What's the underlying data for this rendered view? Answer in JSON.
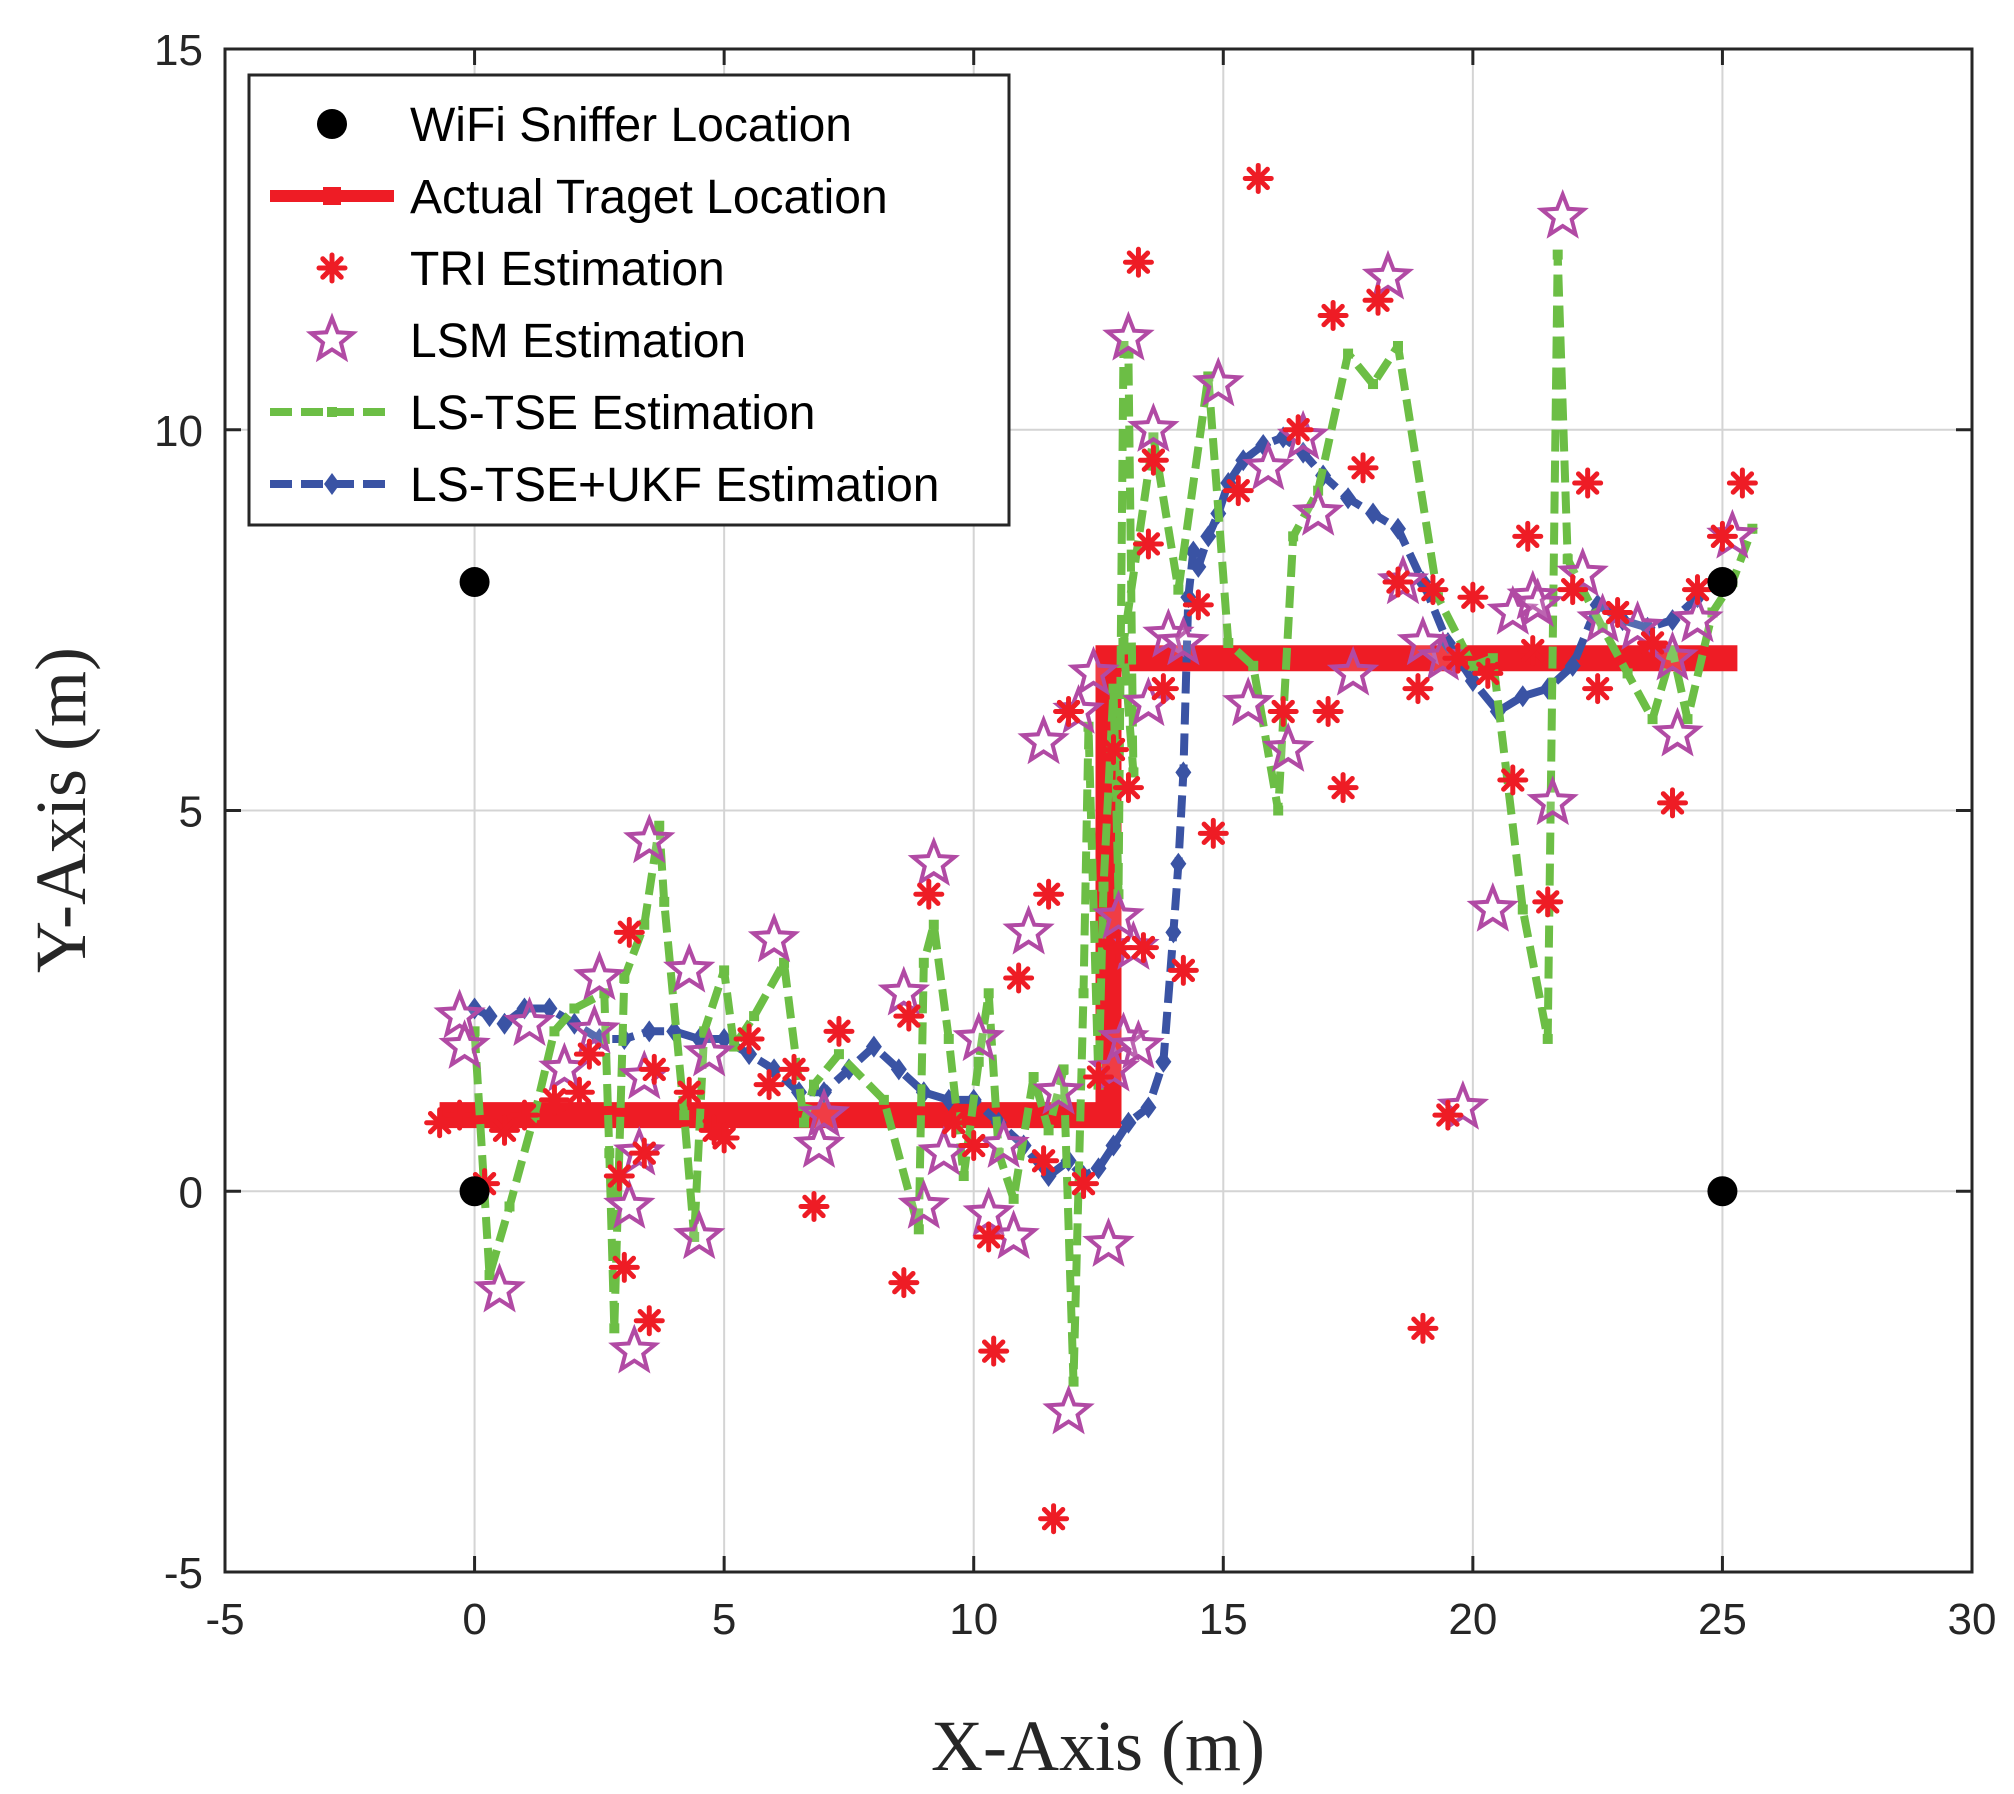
{
  "chart_data": {
    "type": "scatter",
    "title": "",
    "xlabel": "X-Axis (m)",
    "ylabel": "Y-Axis (m)",
    "xlim": [
      -5,
      30
    ],
    "ylim": [
      -5,
      15
    ],
    "xticks": [
      -5,
      0,
      5,
      10,
      15,
      20,
      25,
      30
    ],
    "yticks": [
      -5,
      0,
      5,
      10,
      15
    ],
    "xtick_labels": [
      "-5",
      "0",
      "5",
      "10",
      "15",
      "20",
      "25",
      "30"
    ],
    "ytick_labels": [
      "-5",
      "0",
      "5",
      "10",
      "15"
    ],
    "grid": true,
    "legend_position": "top-left",
    "series": [
      {
        "name": "WiFi Sniffer Location",
        "style": "marker-circle",
        "color": "#000000",
        "x": [
          0,
          0,
          25,
          25
        ],
        "y": [
          0,
          8,
          8,
          0
        ]
      },
      {
        "name": "Actual Traget Location",
        "style": "thick-line-square",
        "color": "#ee1c25",
        "x": [
          -0.7,
          12.7,
          12.7,
          25.3
        ],
        "y": [
          1,
          1,
          7,
          7
        ]
      },
      {
        "name": "TRI Estimation",
        "style": "marker-asterisk",
        "color": "#ee1c25",
        "x": [
          -0.7,
          -0.3,
          0.2,
          0.6,
          1.0,
          1.6,
          2.1,
          2.3,
          2.9,
          3.0,
          3.1,
          3.4,
          3.5,
          3.6,
          4.3,
          4.8,
          5.0,
          5.5,
          5.9,
          6.4,
          6.8,
          7.3,
          8.6,
          8.7,
          9.1,
          9.6,
          10.0,
          10.3,
          10.4,
          10.9,
          11.4,
          11.5,
          11.6,
          11.9,
          12.2,
          12.5,
          12.8,
          12.9,
          13.1,
          13.3,
          13.4,
          13.5,
          13.6,
          13.8,
          14.2,
          14.5,
          14.8,
          15.3,
          15.7,
          16.2,
          16.5,
          17.1,
          17.2,
          17.4,
          17.8,
          18.1,
          18.5,
          18.9,
          19.0,
          19.2,
          19.5,
          19.7,
          20.0,
          20.3,
          20.8,
          21.1,
          21.2,
          21.5,
          22.0,
          22.3,
          22.5,
          22.9,
          23.6,
          24.0,
          24.5,
          25.0,
          25.4
        ],
        "y": [
          0.9,
          1.0,
          0.1,
          0.8,
          1.0,
          1.2,
          1.3,
          1.8,
          0.2,
          -1.0,
          3.4,
          0.5,
          -1.7,
          1.6,
          1.3,
          0.8,
          0.7,
          2.0,
          1.4,
          1.6,
          -0.2,
          2.1,
          -1.2,
          2.3,
          3.9,
          0.9,
          0.6,
          -0.6,
          -2.1,
          2.8,
          0.4,
          3.9,
          -4.3,
          6.3,
          0.1,
          1.5,
          5.8,
          3.2,
          5.3,
          12.2,
          3.2,
          8.5,
          9.6,
          6.6,
          2.9,
          7.7,
          4.7,
          9.2,
          13.3,
          6.3,
          10.0,
          6.3,
          11.5,
          5.3,
          9.5,
          11.7,
          8.0,
          6.6,
          -1.8,
          7.9,
          1.0,
          7.0,
          7.8,
          6.8,
          5.4,
          8.6,
          7.1,
          3.8,
          7.9,
          9.3,
          6.6,
          7.6,
          7.2,
          5.1,
          7.9,
          8.6,
          9.3
        ]
      },
      {
        "name": "LSM Estimation",
        "style": "marker-star",
        "color": "#b14aa4",
        "x": [
          -0.3,
          -0.2,
          0.5,
          1.1,
          1.8,
          2.4,
          2.5,
          3.1,
          3.2,
          3.3,
          3.4,
          3.5,
          4.3,
          4.5,
          4.7,
          6.0,
          6.9,
          7.0,
          8.6,
          9.0,
          9.2,
          9.4,
          10.1,
          10.3,
          10.6,
          10.8,
          11.1,
          11.4,
          11.7,
          11.9,
          12.1,
          12.4,
          12.7,
          12.8,
          12.9,
          13.0,
          13.1,
          13.2,
          13.3,
          13.5,
          13.6,
          13.9,
          14.2,
          14.9,
          15.5,
          15.9,
          16.3,
          16.6,
          16.9,
          17.6,
          18.3,
          18.6,
          19.0,
          19.4,
          19.8,
          20.4,
          20.8,
          21.2,
          21.3,
          21.6,
          21.8,
          22.2,
          22.6,
          23.3,
          24.0,
          24.1,
          24.5,
          25.2
        ],
        "y": [
          2.3,
          1.9,
          -1.3,
          2.2,
          1.6,
          2.1,
          2.8,
          -0.2,
          -2.1,
          0.5,
          1.5,
          4.6,
          2.9,
          -0.6,
          1.8,
          3.3,
          0.6,
          1.0,
          2.6,
          -0.2,
          4.3,
          0.5,
          2.0,
          -0.3,
          0.6,
          -0.6,
          3.4,
          5.9,
          1.3,
          -2.9,
          6.3,
          6.8,
          -0.7,
          1.6,
          3.6,
          2.0,
          11.2,
          3.2,
          1.9,
          6.4,
          10.0,
          7.3,
          7.2,
          10.6,
          6.4,
          9.5,
          5.8,
          9.9,
          8.9,
          6.8,
          12.0,
          8.0,
          7.2,
          7.0,
          1.1,
          3.7,
          7.6,
          7.8,
          7.7,
          5.1,
          12.8,
          8.1,
          7.5,
          7.4,
          7.0,
          6.0,
          7.5,
          8.6
        ]
      },
      {
        "name": "LS-TSE Estimation",
        "style": "dashed-line-square",
        "color": "#6cbe45",
        "x": [
          0.0,
          0.3,
          0.7,
          1.2,
          1.6,
          2.0,
          2.6,
          2.7,
          2.8,
          3.0,
          3.4,
          3.7,
          3.8,
          4.2,
          4.4,
          4.6,
          5.0,
          5.2,
          5.6,
          6.2,
          6.6,
          6.8,
          7.3,
          8.2,
          8.9,
          9.0,
          9.2,
          9.5,
          9.8,
          10.1,
          10.3,
          10.5,
          10.8,
          11.2,
          11.5,
          11.8,
          12.0,
          12.2,
          12.3,
          12.5,
          12.6,
          12.8,
          12.9,
          13.0,
          13.1,
          13.2,
          13.0,
          13.6,
          14.1,
          14.7,
          15.1,
          15.6,
          16.1,
          16.4,
          16.9,
          17.5,
          18.0,
          18.5,
          19.3,
          20.0,
          20.4,
          21.0,
          21.5,
          21.7,
          21.9,
          22.2,
          22.6,
          23.1,
          23.6,
          24.0,
          24.3,
          24.8,
          25.2,
          25.6
        ],
        "y": [
          2.1,
          -1.1,
          -0.2,
          1.0,
          2.1,
          2.4,
          2.6,
          0.5,
          -1.8,
          2.8,
          3.5,
          4.8,
          3.8,
          1.0,
          -0.6,
          2.1,
          2.9,
          1.9,
          2.3,
          3.0,
          0.9,
          1.4,
          1.8,
          1.2,
          -0.5,
          3.0,
          3.5,
          2.0,
          0.2,
          1.7,
          2.6,
          0.5,
          -0.1,
          1.5,
          0.8,
          1.6,
          -2.5,
          2.6,
          6.1,
          1.4,
          4.0,
          6.6,
          3.9,
          11.1,
          11.0,
          5.5,
          7.2,
          9.9,
          7.9,
          10.7,
          7.2,
          6.9,
          5.0,
          8.6,
          9.2,
          11.0,
          10.6,
          11.1,
          7.8,
          6.9,
          7.0,
          3.7,
          2.0,
          12.3,
          8.3,
          7.9,
          7.4,
          6.8,
          6.2,
          7.1,
          6.2,
          7.6,
          8.0,
          8.7
        ]
      },
      {
        "name": "LS-TSE+UKF Estimation",
        "style": "dashed-line-diamond",
        "color": "#3a53a4",
        "x": [
          0.0,
          0.3,
          0.6,
          1.0,
          1.5,
          2.0,
          2.5,
          3.0,
          3.5,
          4.0,
          4.5,
          5.0,
          5.5,
          6.0,
          6.5,
          7.0,
          7.5,
          8.0,
          8.5,
          9.0,
          9.5,
          10.0,
          10.5,
          11.0,
          11.5,
          11.9,
          12.2,
          12.5,
          12.8,
          13.1,
          13.5,
          13.8,
          14.0,
          14.1,
          14.2,
          14.3,
          14.4,
          14.5,
          14.7,
          14.9,
          15.1,
          15.4,
          15.8,
          16.2,
          16.6,
          17.0,
          17.5,
          18.0,
          18.5,
          19.0,
          19.5,
          20.0,
          20.5,
          21.0,
          21.5,
          22.0,
          22.5,
          23.0,
          23.5,
          24.0,
          24.5
        ],
        "y": [
          2.4,
          2.3,
          2.2,
          2.4,
          2.4,
          2.2,
          2.0,
          2.0,
          2.1,
          2.1,
          2.0,
          2.0,
          1.8,
          1.6,
          1.3,
          1.3,
          1.6,
          1.9,
          1.6,
          1.3,
          1.2,
          1.2,
          0.9,
          0.6,
          0.2,
          0.4,
          0.2,
          0.3,
          0.6,
          0.9,
          1.1,
          1.7,
          3.4,
          4.3,
          5.5,
          7.8,
          8.4,
          8.2,
          8.6,
          8.9,
          9.3,
          9.6,
          9.8,
          9.9,
          9.7,
          9.4,
          9.1,
          8.9,
          8.7,
          8.0,
          7.2,
          6.7,
          6.3,
          6.5,
          6.6,
          6.9,
          7.7,
          7.5,
          7.4,
          7.5,
          7.8
        ]
      }
    ]
  }
}
